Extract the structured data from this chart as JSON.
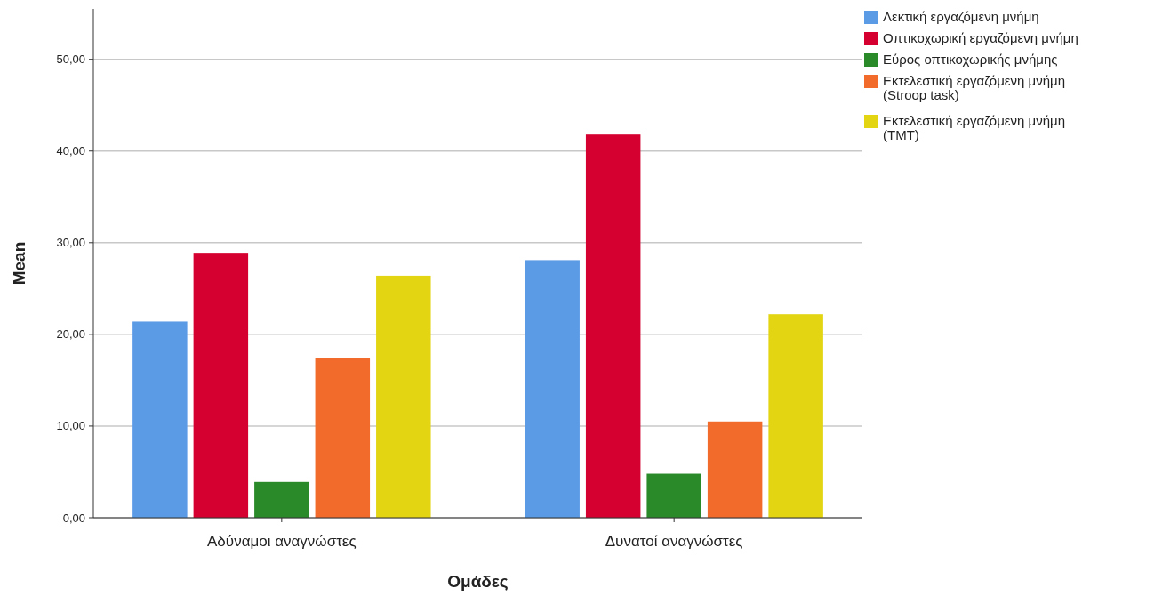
{
  "chart_data": {
    "type": "bar",
    "xlabel": "Ομάδες",
    "ylabel": "Mean",
    "categories": [
      "Αδύναμοι αναγνώστες",
      "Δυνατοί αναγνώστες"
    ],
    "series": [
      {
        "name": "Λεκτική εργαζόμενη μνήμη",
        "color": "#5b9be6",
        "values": [
          21.4,
          28.1
        ]
      },
      {
        "name": "Οπτικοχωρική εργαζόμενη μνήμη",
        "color": "#d5002f",
        "values": [
          28.9,
          41.8
        ]
      },
      {
        "name": "Εύρος οπτικοχωρικής μνήμης",
        "color": "#2a8a2a",
        "values": [
          3.9,
          4.8
        ]
      },
      {
        "name": "Εκτελεστική εργαζόμενη μνήμη\n(Stroop task)",
        "color": "#f26b2a",
        "values": [
          17.4,
          10.5
        ]
      },
      {
        "name": "Εκτελεστική εργαζόμενη μνήμη\n(TMT)",
        "color": "#e3d512",
        "values": [
          26.4,
          22.2
        ]
      }
    ],
    "ylim": [
      0,
      55.5
    ],
    "yticks": [
      {
        "value": 0,
        "label": "0,00"
      },
      {
        "value": 10,
        "label": "10,00"
      },
      {
        "value": 20,
        "label": "20,00"
      },
      {
        "value": 30,
        "label": "30,00"
      },
      {
        "value": 40,
        "label": "40,00"
      },
      {
        "value": 50,
        "label": "50,00"
      }
    ],
    "grid": "y",
    "legend": "top right"
  }
}
